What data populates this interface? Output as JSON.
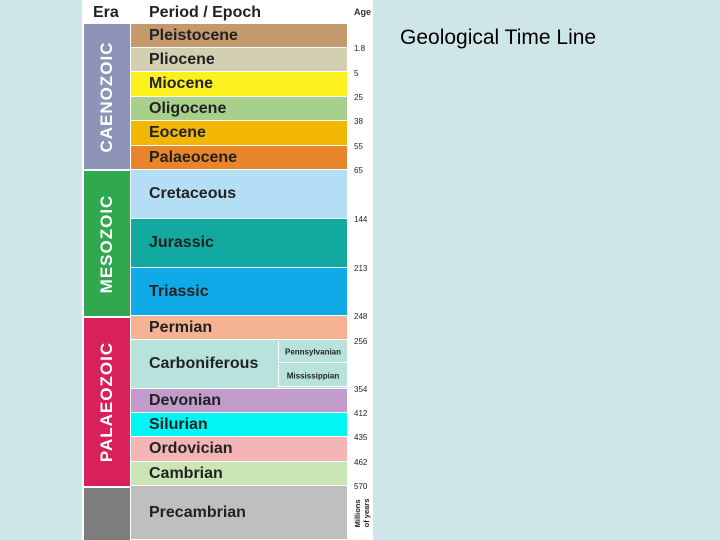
{
  "title": "Geological Time Line",
  "headers": {
    "era": "Era",
    "period": "Period / Epoch",
    "age": "Age"
  },
  "eras": {
    "caenozoic": "CAENOZOIC",
    "mesozoic": "MESOZOIC",
    "palaeozoic": "PALAEOZOIC"
  },
  "periods": [
    {
      "name": "Pleistocene",
      "color": "#c49a6c"
    },
    {
      "name": "Pliocene",
      "color": "#d2cfb2"
    },
    {
      "name": "Miocene",
      "color": "#fdf11d"
    },
    {
      "name": "Oligocene",
      "color": "#a8d08d"
    },
    {
      "name": "Eocene",
      "color": "#f2b705"
    },
    {
      "name": "Palaeocene",
      "color": "#e8852b"
    },
    {
      "name": "Cretaceous",
      "color": "#b4def5"
    },
    {
      "name": "Jurassic",
      "color": "#11a9a0"
    },
    {
      "name": "Triassic",
      "color": "#10aae8"
    },
    {
      "name": "Permian",
      "color": "#f6b393"
    },
    {
      "name": "Carboniferous",
      "color": "#b7e3dc"
    },
    {
      "name": "Devonian",
      "color": "#c19bcc"
    },
    {
      "name": "Silurian",
      "color": "#00f5f5"
    },
    {
      "name": "Ordovician",
      "color": "#f3b5b5"
    },
    {
      "name": "Cambrian",
      "color": "#cce5b5"
    },
    {
      "name": "Precambrian",
      "color": "#bfbfbf"
    }
  ],
  "carboniferous_sub": [
    "Pennsylvanian",
    "Mississippian"
  ],
  "ages": [
    "1.8",
    "5",
    "25",
    "38",
    "55",
    "65",
    "144",
    "213",
    "248",
    "256",
    "354",
    "412",
    "435",
    "462",
    "570"
  ],
  "age_unit": [
    "Millions",
    "of years"
  ]
}
